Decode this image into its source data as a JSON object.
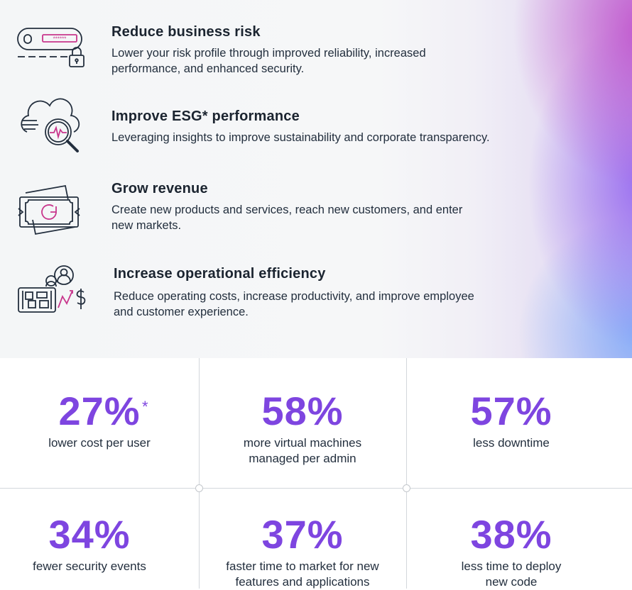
{
  "features": [
    {
      "title": "Reduce business risk",
      "desc_lines": [
        "Lower your risk profile through improved reliability, increased",
        "performance, and enhanced security."
      ],
      "icon": "credit-card-lock-icon"
    },
    {
      "title": "Improve ESG* performance",
      "desc_lines": [
        "Leveraging insights to improve sustainability and corporate transparency."
      ],
      "icon": "cloud-magnifier-icon"
    },
    {
      "title": "Grow revenue",
      "desc_lines": [
        "Create new products and services, reach new customers, and enter",
        "new markets."
      ],
      "icon": "banknote-icon"
    },
    {
      "title": "Increase operational efficiency",
      "desc_lines": [
        "Reduce operating costs, increase productivity, and improve employee",
        "and customer experience."
      ],
      "icon": "people-efficiency-icon"
    }
  ],
  "stats": [
    {
      "value": "27%",
      "star": "*",
      "label_lines": [
        "lower cost per user"
      ]
    },
    {
      "value": "58%",
      "label_lines": [
        "more virtual machines",
        "managed per admin"
      ]
    },
    {
      "value": "57%",
      "label_lines": [
        "less downtime"
      ]
    },
    {
      "value": "34%",
      "label_lines": [
        "fewer security events"
      ]
    },
    {
      "value": "37%",
      "label_lines": [
        "faster time to market for new",
        "features and applications"
      ]
    },
    {
      "value": "38%",
      "label_lines": [
        "less time to deploy",
        "new code"
      ]
    }
  ],
  "colors": {
    "accent": "#7e45e0",
    "text": "#232f3e",
    "icon_pink": "#c8368c"
  }
}
